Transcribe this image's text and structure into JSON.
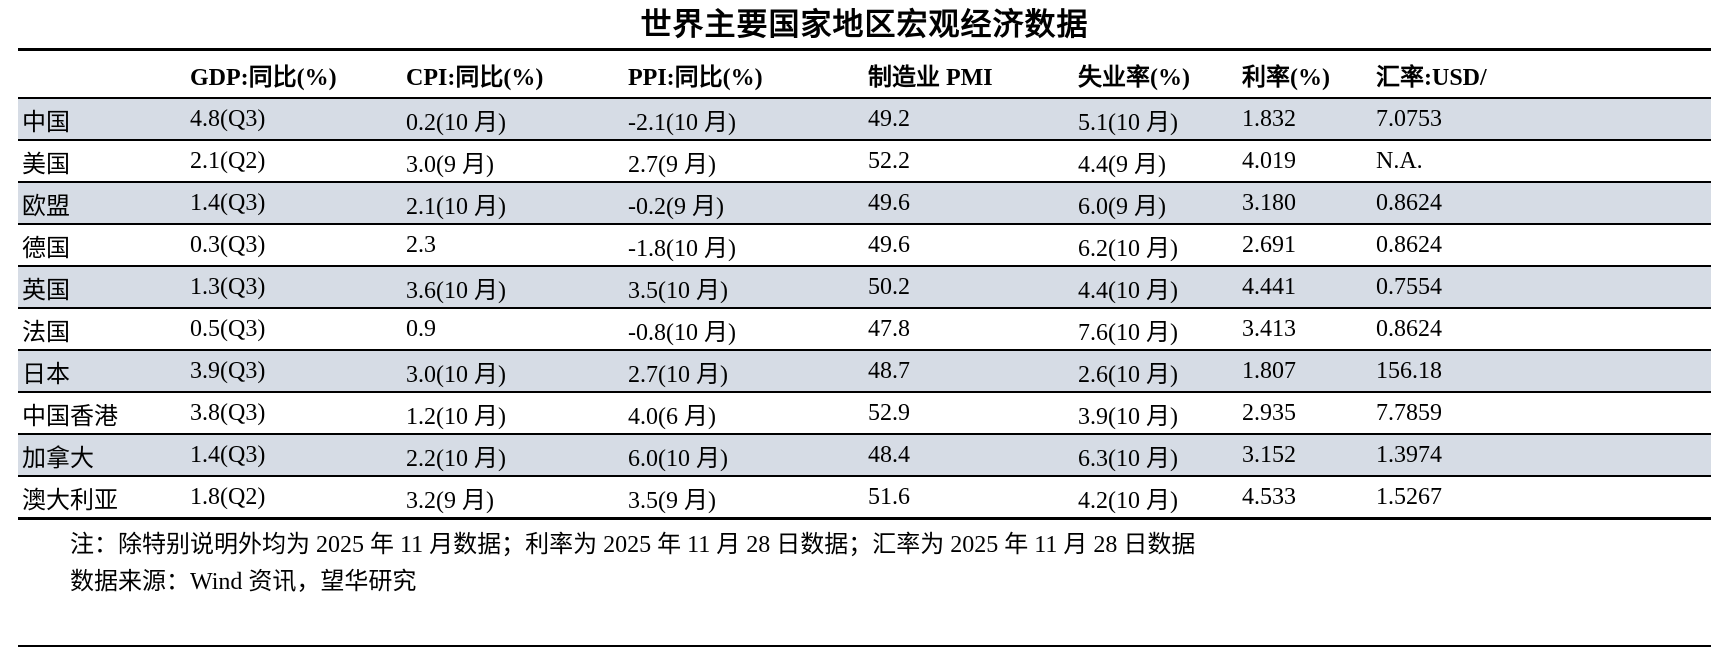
{
  "page": {
    "title": "世界主要国家地区宏观经济数据"
  },
  "table": {
    "columns": [
      {
        "label": ""
      },
      {
        "label": "GDP:同比(%)"
      },
      {
        "label": "CPI:同比(%)"
      },
      {
        "label": "PPI:同比(%)"
      },
      {
        "label": "制造业 PMI"
      },
      {
        "label": "失业率(%)"
      },
      {
        "label": "利率(%)"
      },
      {
        "label": "汇率:USD/"
      }
    ],
    "rows": [
      {
        "region": "中国",
        "gdp": "4.8(Q3)",
        "cpi": "0.2(10 月)",
        "ppi": "-2.1(10 月)",
        "pmi": "49.2",
        "unemployment": "5.1(10 月)",
        "interest_rate": "1.832",
        "fx_rate": "7.0753",
        "shaded": true
      },
      {
        "region": "美国",
        "gdp": "2.1(Q2)",
        "cpi": "3.0(9 月)",
        "ppi": "2.7(9 月)",
        "pmi": "52.2",
        "unemployment": "4.4(9 月)",
        "interest_rate": "4.019",
        "fx_rate": "N.A.",
        "shaded": false
      },
      {
        "region": "欧盟",
        "gdp": "1.4(Q3)",
        "cpi": "2.1(10 月)",
        "ppi": "-0.2(9 月)",
        "pmi": "49.6",
        "unemployment": "6.0(9 月)",
        "interest_rate": "3.180",
        "fx_rate": "0.8624",
        "shaded": true
      },
      {
        "region": "德国",
        "gdp": "0.3(Q3)",
        "cpi": "2.3",
        "ppi": "-1.8(10 月)",
        "pmi": "49.6",
        "unemployment": "6.2(10 月)",
        "interest_rate": "2.691",
        "fx_rate": "0.8624",
        "shaded": false
      },
      {
        "region": "英国",
        "gdp": "1.3(Q3)",
        "cpi": "3.6(10 月)",
        "ppi": "3.5(10 月)",
        "pmi": "50.2",
        "unemployment": "4.4(10 月)",
        "interest_rate": "4.441",
        "fx_rate": "0.7554",
        "shaded": true
      },
      {
        "region": "法国",
        "gdp": "0.5(Q3)",
        "cpi": "0.9",
        "ppi": "-0.8(10 月)",
        "pmi": "47.8",
        "unemployment": "7.6(10 月)",
        "interest_rate": "3.413",
        "fx_rate": "0.8624",
        "shaded": false
      },
      {
        "region": "日本",
        "gdp": "3.9(Q3)",
        "cpi": "3.0(10 月)",
        "ppi": "2.7(10 月)",
        "pmi": "48.7",
        "unemployment": "2.6(10 月)",
        "interest_rate": "1.807",
        "fx_rate": "156.18",
        "shaded": true
      },
      {
        "region": "中国香港",
        "gdp": "3.8(Q3)",
        "cpi": "1.2(10 月)",
        "ppi": "4.0(6 月)",
        "pmi": "52.9",
        "unemployment": "3.9(10 月)",
        "interest_rate": "2.935",
        "fx_rate": "7.7859",
        "shaded": false
      },
      {
        "region": "加拿大",
        "gdp": "1.4(Q3)",
        "cpi": "2.2(10 月)",
        "ppi": "6.0(10 月)",
        "pmi": "48.4",
        "unemployment": "6.3(10 月)",
        "interest_rate": "3.152",
        "fx_rate": "1.3974",
        "shaded": true
      },
      {
        "region": "澳大利亚",
        "gdp": "1.8(Q2)",
        "cpi": "3.2(9 月)",
        "ppi": "3.5(9 月)",
        "pmi": "51.6",
        "unemployment": "4.2(10 月)",
        "interest_rate": "4.533",
        "fx_rate": "1.5267",
        "shaded": false
      }
    ]
  },
  "notes": {
    "note": "注：除特别说明外均为 2025 年 11 月数据；利率为 2025 年 11 月 28 日数据；汇率为 2025 年 11 月 28 日数据",
    "source": "数据来源：Wind 资讯，望华研究"
  },
  "colors": {
    "row_shade": "#d6dce5",
    "border": "#000000",
    "background": "#ffffff",
    "text": "#000000"
  }
}
